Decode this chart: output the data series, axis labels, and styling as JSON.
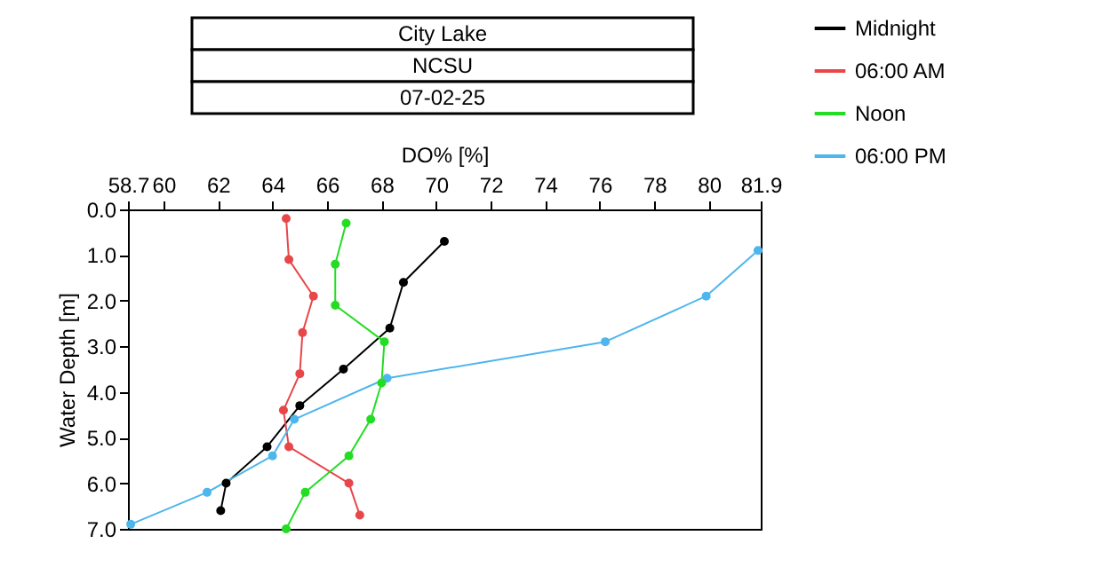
{
  "chart_data": {
    "type": "line",
    "title": "City Lake",
    "subtitle": "NCSU",
    "annotations": [
      "07-02-25"
    ],
    "xlabel": "DO% [%]",
    "ylabel": "Water Depth [m]",
    "xlim": [
      58.7,
      81.9
    ],
    "xticks": [
      58.7,
      60,
      62,
      64,
      66,
      68,
      70,
      72,
      74,
      76,
      78,
      80,
      81.9
    ],
    "ylim": [
      7,
      0
    ],
    "yticks": [
      {
        "value": 0,
        "label": "0.0"
      },
      {
        "value": 1,
        "label": "1.0"
      },
      {
        "value": 2,
        "label": "2.0"
      },
      {
        "value": 3,
        "label": "3.0"
      },
      {
        "value": 4,
        "label": "4.0"
      },
      {
        "value": 5,
        "label": "5.0"
      },
      {
        "value": 6,
        "label": "6.0"
      },
      {
        "value": 7,
        "label": "7.0"
      }
    ],
    "grid": false,
    "legend": "top right",
    "marker": "circle",
    "line_style": "solid",
    "series": [
      {
        "name": "Midnight",
        "color": "#000000",
        "x": [
          70.3,
          68.8,
          68.3,
          66.6,
          65.0,
          63.8,
          62.3,
          62.1
        ],
        "values": [
          0.7,
          1.6,
          2.6,
          3.5,
          4.3,
          5.2,
          6.0,
          6.6
        ]
      },
      {
        "name": "06:00 AM",
        "color": "#e8474a",
        "x": [
          64.5,
          64.6,
          65.5,
          65.1,
          65.0,
          64.4,
          64.6,
          66.8,
          67.2
        ],
        "values": [
          0.2,
          1.1,
          1.9,
          2.7,
          3.6,
          4.4,
          5.2,
          6.0,
          6.7
        ]
      },
      {
        "name": "Noon",
        "color": "#22dd22",
        "x": [
          66.7,
          66.3,
          66.3,
          68.1,
          68.0,
          67.6,
          66.8,
          65.2,
          64.5
        ],
        "values": [
          0.3,
          1.2,
          2.1,
          2.9,
          3.8,
          4.6,
          5.4,
          6.2,
          7.0
        ]
      },
      {
        "name": "06:00 PM",
        "color": "#4db6ec",
        "x": [
          81.8,
          79.9,
          76.2,
          68.2,
          64.8,
          64.0,
          61.6,
          58.8
        ],
        "values": [
          0.9,
          1.9,
          2.9,
          3.7,
          4.6,
          5.4,
          6.2,
          6.9
        ]
      }
    ]
  }
}
